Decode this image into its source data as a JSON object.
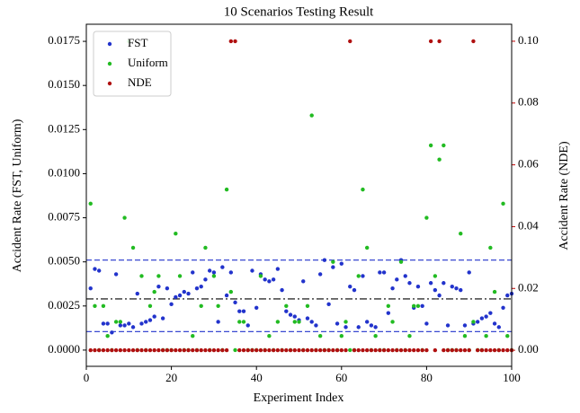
{
  "chart_data": {
    "type": "scatter",
    "title": "10 Scenarios Testing Result",
    "xlabel": "Experiment Index",
    "ylabel": "Accident Rate (FST, Uniform)",
    "y2label": "Accident Rate (NDE)",
    "x": [
      1,
      2,
      3,
      4,
      5,
      6,
      7,
      8,
      9,
      10,
      11,
      12,
      13,
      14,
      15,
      16,
      17,
      18,
      19,
      20,
      21,
      22,
      23,
      24,
      25,
      26,
      27,
      28,
      29,
      30,
      31,
      32,
      33,
      34,
      35,
      36,
      37,
      38,
      39,
      40,
      41,
      42,
      43,
      44,
      45,
      46,
      47,
      48,
      49,
      50,
      51,
      52,
      53,
      54,
      55,
      56,
      57,
      58,
      59,
      60,
      61,
      62,
      63,
      64,
      65,
      66,
      67,
      68,
      69,
      70,
      71,
      72,
      73,
      74,
      75,
      76,
      77,
      78,
      79,
      80,
      81,
      82,
      83,
      84,
      85,
      86,
      87,
      88,
      89,
      90,
      91,
      92,
      93,
      94,
      95,
      96,
      97,
      98,
      99,
      100
    ],
    "series": [
      {
        "name": "FST",
        "color": "#2233cc",
        "values": [
          0.0035,
          0.0046,
          0.0045,
          0.0015,
          0.0015,
          0.001,
          0.0043,
          0.0014,
          0.0014,
          0.0015,
          0.0013,
          0.0032,
          0.0015,
          0.0016,
          0.0017,
          0.0019,
          0.0036,
          0.0018,
          0.0035,
          0.0026,
          0.003,
          0.0031,
          0.0033,
          0.0032,
          0.0044,
          0.0035,
          0.0036,
          0.004,
          0.0045,
          0.0044,
          0.0016,
          0.0047,
          0.0031,
          0.0044,
          0.0027,
          0.0022,
          0.0022,
          0.0014,
          0.0045,
          0.0024,
          0.0043,
          0.004,
          0.0039,
          0.004,
          0.0046,
          0.0034,
          0.0022,
          0.002,
          0.0019,
          0.0017,
          0.0039,
          0.0018,
          0.0016,
          0.0014,
          0.0043,
          0.0051,
          0.0026,
          0.0047,
          0.0015,
          0.0049,
          0.0013,
          0.0036,
          0.0034,
          0.0013,
          0.0042,
          0.0016,
          0.0014,
          0.0013,
          0.0044,
          0.0044,
          0.0021,
          0.0035,
          0.004,
          0.0051,
          0.0042,
          0.0038,
          0.0024,
          0.0036,
          0.0025,
          0.0015,
          0.0038,
          0.0034,
          0.0031,
          0.0038,
          0.0014,
          0.0036,
          0.0035,
          0.0034,
          0.0014,
          0.0044,
          0.0015,
          0.0016,
          0.0018,
          0.0019,
          0.0021,
          0.0015,
          0.0013,
          0.0024,
          0.0031,
          0.0032
        ]
      },
      {
        "name": "Uniform",
        "color": "#22bb22",
        "values": [
          0.0083,
          0.0025,
          0,
          0.0025,
          0.0008,
          0,
          0.0016,
          0.0016,
          0.0075,
          0.0175,
          0.0058,
          0,
          0.0042,
          0,
          0.0025,
          0.0033,
          0.0042,
          0,
          0,
          0,
          0.0066,
          0.0042,
          0,
          0,
          0.0008,
          0,
          0.0025,
          0.0058,
          0,
          0.0042,
          0.0025,
          0,
          0.0091,
          0.0033,
          0,
          0.0016,
          0.0016,
          0,
          0,
          0,
          0.0042,
          0,
          0.0008,
          0,
          0.0016,
          0,
          0.0025,
          0,
          0.0016,
          0.0016,
          0,
          0.0025,
          0.0133,
          0,
          0.0008,
          0,
          0,
          0.005,
          0,
          0.0008,
          0.0016,
          0,
          0,
          0.0042,
          0.0091,
          0.0058,
          0,
          0.0008,
          0,
          0,
          0.0025,
          0.0016,
          0,
          0.005,
          0,
          0.0008,
          0.0025,
          0.0025,
          0,
          0.0075,
          0.0116,
          0.0042,
          0.0108,
          0.0116,
          0,
          0,
          0,
          0.0066,
          0.0008,
          0,
          0.0016,
          0,
          0,
          0.0008,
          0.0058,
          0.0033,
          0,
          0.0083,
          0.0008,
          0
        ]
      },
      {
        "name": "NDE",
        "color": "#b01010",
        "axis": "y2",
        "values": [
          0,
          0,
          0,
          0,
          0,
          0,
          0,
          0,
          0,
          0,
          0,
          0,
          0,
          0,
          0,
          0,
          0,
          0,
          0,
          0,
          0,
          0,
          0,
          0,
          0,
          0,
          0,
          0,
          0,
          0,
          0,
          0,
          0,
          0.1,
          0.1,
          0,
          0,
          0,
          0,
          0,
          0,
          0,
          0,
          0,
          0,
          0,
          0,
          0,
          0,
          0,
          0,
          0,
          0,
          0,
          0,
          0,
          0,
          0,
          0,
          0,
          0,
          0.1,
          0,
          0,
          0,
          0,
          0,
          0,
          0,
          0,
          0,
          0,
          0,
          0,
          0,
          0,
          0,
          0,
          0,
          0,
          0.1,
          0,
          0.1,
          0,
          0,
          0,
          0,
          0,
          0,
          0,
          0.1,
          0,
          0,
          0,
          0,
          0,
          0,
          0,
          0,
          0
        ]
      }
    ],
    "hlines": [
      {
        "value": 0.0051,
        "color": "#2233cc",
        "dash": "6,3"
      },
      {
        "value": 0.00105,
        "color": "#2233cc",
        "dash": "6,3"
      },
      {
        "value": 0.0029,
        "color": "#000000",
        "dash": "8,3,2,3"
      }
    ],
    "xlim": [
      0,
      100
    ],
    "xticks": [
      0,
      20,
      40,
      60,
      80,
      100
    ],
    "ylim": [
      -0.00092,
      0.01847
    ],
    "yticks": [
      {
        "value": 0,
        "label": "0.0000"
      },
      0.0025,
      {
        "value": 0.005,
        "label": "0.0050"
      },
      0.0075,
      {
        "value": 0.01,
        "label": "0.0100"
      },
      0.0125,
      {
        "value": 0.015,
        "label": "0.0150"
      },
      0.0175
    ],
    "y2lim": [
      -0.0052,
      0.1055
    ],
    "y2ticks": [
      {
        "value": 0,
        "label": "0.00"
      },
      0.02,
      0.04,
      0.06,
      0.08,
      {
        "value": 0.1,
        "label": "0.10"
      }
    ],
    "y2color": "#c00000",
    "legend": "upper left"
  }
}
